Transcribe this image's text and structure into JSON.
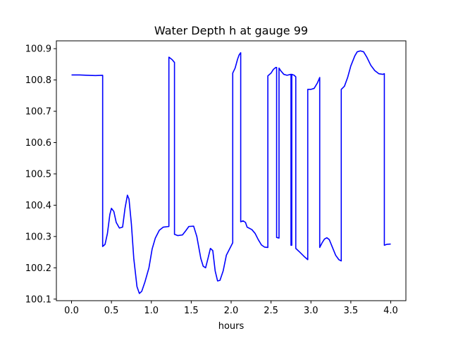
{
  "chart_data": {
    "type": "line",
    "title": "Water Depth h at gauge 99",
    "xlabel": "hours",
    "ylabel": "",
    "xlim": [
      -0.19,
      4.19
    ],
    "ylim": [
      100.095,
      100.925
    ],
    "grid": false,
    "legend": "none",
    "x_ticks": [
      0.0,
      0.5,
      1.0,
      1.5,
      2.0,
      2.5,
      3.0,
      3.5,
      4.0
    ],
    "x_tick_labels": [
      "0.0",
      "0.5",
      "1.0",
      "1.5",
      "2.0",
      "2.5",
      "3.0",
      "3.5",
      "4.0"
    ],
    "y_ticks": [
      100.1,
      100.2,
      100.3,
      100.4,
      100.5,
      100.6,
      100.7,
      100.8,
      100.9
    ],
    "y_tick_labels": [
      "100.1",
      "100.2",
      "100.3",
      "100.4",
      "100.5",
      "100.6",
      "100.7",
      "100.8",
      "100.9"
    ],
    "series": [
      {
        "color": "#0000ff",
        "points": [
          [
            0.0,
            100.816
          ],
          [
            0.1,
            100.816
          ],
          [
            0.2,
            100.815
          ],
          [
            0.3,
            100.814
          ],
          [
            0.39,
            100.815
          ],
          [
            0.39,
            100.268
          ],
          [
            0.42,
            100.275
          ],
          [
            0.45,
            100.31
          ],
          [
            0.48,
            100.37
          ],
          [
            0.5,
            100.39
          ],
          [
            0.53,
            100.38
          ],
          [
            0.56,
            100.345
          ],
          [
            0.6,
            100.327
          ],
          [
            0.64,
            100.33
          ],
          [
            0.67,
            100.39
          ],
          [
            0.7,
            100.432
          ],
          [
            0.72,
            100.42
          ],
          [
            0.75,
            100.34
          ],
          [
            0.78,
            100.23
          ],
          [
            0.82,
            100.14
          ],
          [
            0.85,
            100.118
          ],
          [
            0.88,
            100.125
          ],
          [
            0.92,
            100.155
          ],
          [
            0.97,
            100.2
          ],
          [
            1.01,
            100.26
          ],
          [
            1.05,
            100.295
          ],
          [
            1.1,
            100.32
          ],
          [
            1.15,
            100.33
          ],
          [
            1.22,
            100.332
          ],
          [
            1.22,
            100.873
          ],
          [
            1.26,
            100.865
          ],
          [
            1.29,
            100.856
          ],
          [
            1.29,
            100.307
          ],
          [
            1.33,
            100.303
          ],
          [
            1.39,
            100.305
          ],
          [
            1.43,
            100.318
          ],
          [
            1.47,
            100.332
          ],
          [
            1.53,
            100.333
          ],
          [
            1.57,
            100.3
          ],
          [
            1.62,
            100.23
          ],
          [
            1.65,
            100.205
          ],
          [
            1.68,
            100.2
          ],
          [
            1.71,
            100.23
          ],
          [
            1.74,
            100.262
          ],
          [
            1.77,
            100.255
          ],
          [
            1.8,
            100.19
          ],
          [
            1.83,
            100.158
          ],
          [
            1.86,
            100.16
          ],
          [
            1.9,
            100.19
          ],
          [
            1.94,
            100.24
          ],
          [
            2.02,
            100.28
          ],
          [
            2.02,
            100.822
          ],
          [
            2.05,
            100.838
          ],
          [
            2.08,
            100.866
          ],
          [
            2.1,
            100.88
          ],
          [
            2.12,
            100.887
          ],
          [
            2.12,
            100.347
          ],
          [
            2.15,
            100.35
          ],
          [
            2.18,
            100.345
          ],
          [
            2.2,
            100.33
          ],
          [
            2.26,
            100.322
          ],
          [
            2.3,
            100.31
          ],
          [
            2.34,
            100.29
          ],
          [
            2.38,
            100.273
          ],
          [
            2.42,
            100.266
          ],
          [
            2.46,
            100.265
          ],
          [
            2.46,
            100.813
          ],
          [
            2.5,
            100.822
          ],
          [
            2.53,
            100.834
          ],
          [
            2.56,
            100.84
          ],
          [
            2.57,
            100.84
          ],
          [
            2.57,
            100.297
          ],
          [
            2.6,
            100.295
          ],
          [
            2.6,
            100.838
          ],
          [
            2.62,
            100.83
          ],
          [
            2.66,
            100.818
          ],
          [
            2.7,
            100.815
          ],
          [
            2.75,
            100.818
          ],
          [
            2.75,
            100.272
          ],
          [
            2.76,
            100.272
          ],
          [
            2.76,
            100.818
          ],
          [
            2.79,
            100.815
          ],
          [
            2.81,
            100.81
          ],
          [
            2.81,
            100.262
          ],
          [
            2.86,
            100.25
          ],
          [
            2.92,
            100.235
          ],
          [
            2.96,
            100.226
          ],
          [
            2.96,
            100.77
          ],
          [
            3.0,
            100.77
          ],
          [
            3.04,
            100.773
          ],
          [
            3.08,
            100.79
          ],
          [
            3.11,
            100.808
          ],
          [
            3.11,
            100.265
          ],
          [
            3.14,
            100.28
          ],
          [
            3.17,
            100.292
          ],
          [
            3.2,
            100.296
          ],
          [
            3.23,
            100.29
          ],
          [
            3.27,
            100.265
          ],
          [
            3.31,
            100.24
          ],
          [
            3.35,
            100.226
          ],
          [
            3.38,
            100.222
          ],
          [
            3.38,
            100.77
          ],
          [
            3.42,
            100.78
          ],
          [
            3.46,
            100.808
          ],
          [
            3.5,
            100.845
          ],
          [
            3.55,
            100.877
          ],
          [
            3.58,
            100.89
          ],
          [
            3.62,
            100.893
          ],
          [
            3.66,
            100.89
          ],
          [
            3.7,
            100.873
          ],
          [
            3.75,
            100.847
          ],
          [
            3.8,
            100.83
          ],
          [
            3.85,
            100.82
          ],
          [
            3.9,
            100.818
          ],
          [
            3.92,
            100.82
          ],
          [
            3.92,
            100.272
          ],
          [
            3.95,
            100.275
          ],
          [
            4.0,
            100.276
          ]
        ]
      }
    ]
  }
}
